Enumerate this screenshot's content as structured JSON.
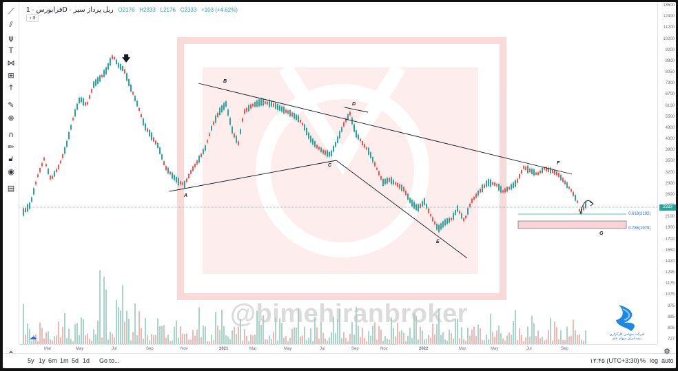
{
  "legend": {
    "symbol": "ریل پرداز سیر",
    "timeframe": "1D",
    "exchange": "فرابورس",
    "open": "O2176",
    "high": "H2333",
    "low": "L2176",
    "close": "C2333",
    "change": "+103 (+4.62%)",
    "indicators_toggle": "3"
  },
  "price_axis": [
    "13600",
    "12400",
    "11200",
    "10200",
    "9200",
    "8800",
    "8050",
    "7300",
    "6700",
    "6100",
    "5500",
    "4900",
    "4300",
    "3900",
    "3500",
    "3200",
    "2900",
    "2600",
    "2400",
    "2100",
    "1900",
    "1700",
    "1550",
    "1420",
    "1295",
    "1175",
    "1075",
    "975",
    "885",
    "805",
    "727"
  ],
  "current_price_label": "2333",
  "time_axis": [
    "Mar",
    "May",
    "Jul",
    "Sep",
    "Nov",
    "2021",
    "Mar",
    "May",
    "Jul",
    "Sep",
    "Nov",
    "2022",
    "Mar",
    "May",
    "Jul",
    "Sep"
  ],
  "wave_labels": [
    "A",
    "B",
    "C",
    "D",
    "E",
    "F",
    "G"
  ],
  "fib_levels": [
    {
      "label": "0.618(2192)"
    },
    {
      "label": "0.786(1979)"
    }
  ],
  "watermark": "@bimehiranbroker",
  "logo_caption": [
    "شرکت سهامی کارگزاری",
    "بیمه ایران سهام عام"
  ],
  "bottom": {
    "ranges": [
      "5y",
      "1y",
      "6m",
      "1m",
      "5d",
      "1d"
    ],
    "goto": "Go to...",
    "clock": "۱۲:۴۵ (UTC+3:30)",
    "percent": "%",
    "log": "log",
    "auto": "auto"
  },
  "colors": {
    "up": "#26a69a",
    "down": "#ef5350",
    "line": "#131722",
    "fib_box": "#f8d4d8",
    "accent": "#2962ff"
  },
  "icons": [
    "cursor-cross-icon",
    "trend-line-icon",
    "pitchfork-icon",
    "brush-icon",
    "text-icon",
    "pattern-icon",
    "prediction-icon",
    "arrow-up-icon",
    "ruler-icon",
    "zoom-in-icon",
    "magnet-icon",
    "lock-drawings-icon",
    "lock-icon",
    "eye-icon",
    "trash-icon",
    "layers-icon"
  ]
}
